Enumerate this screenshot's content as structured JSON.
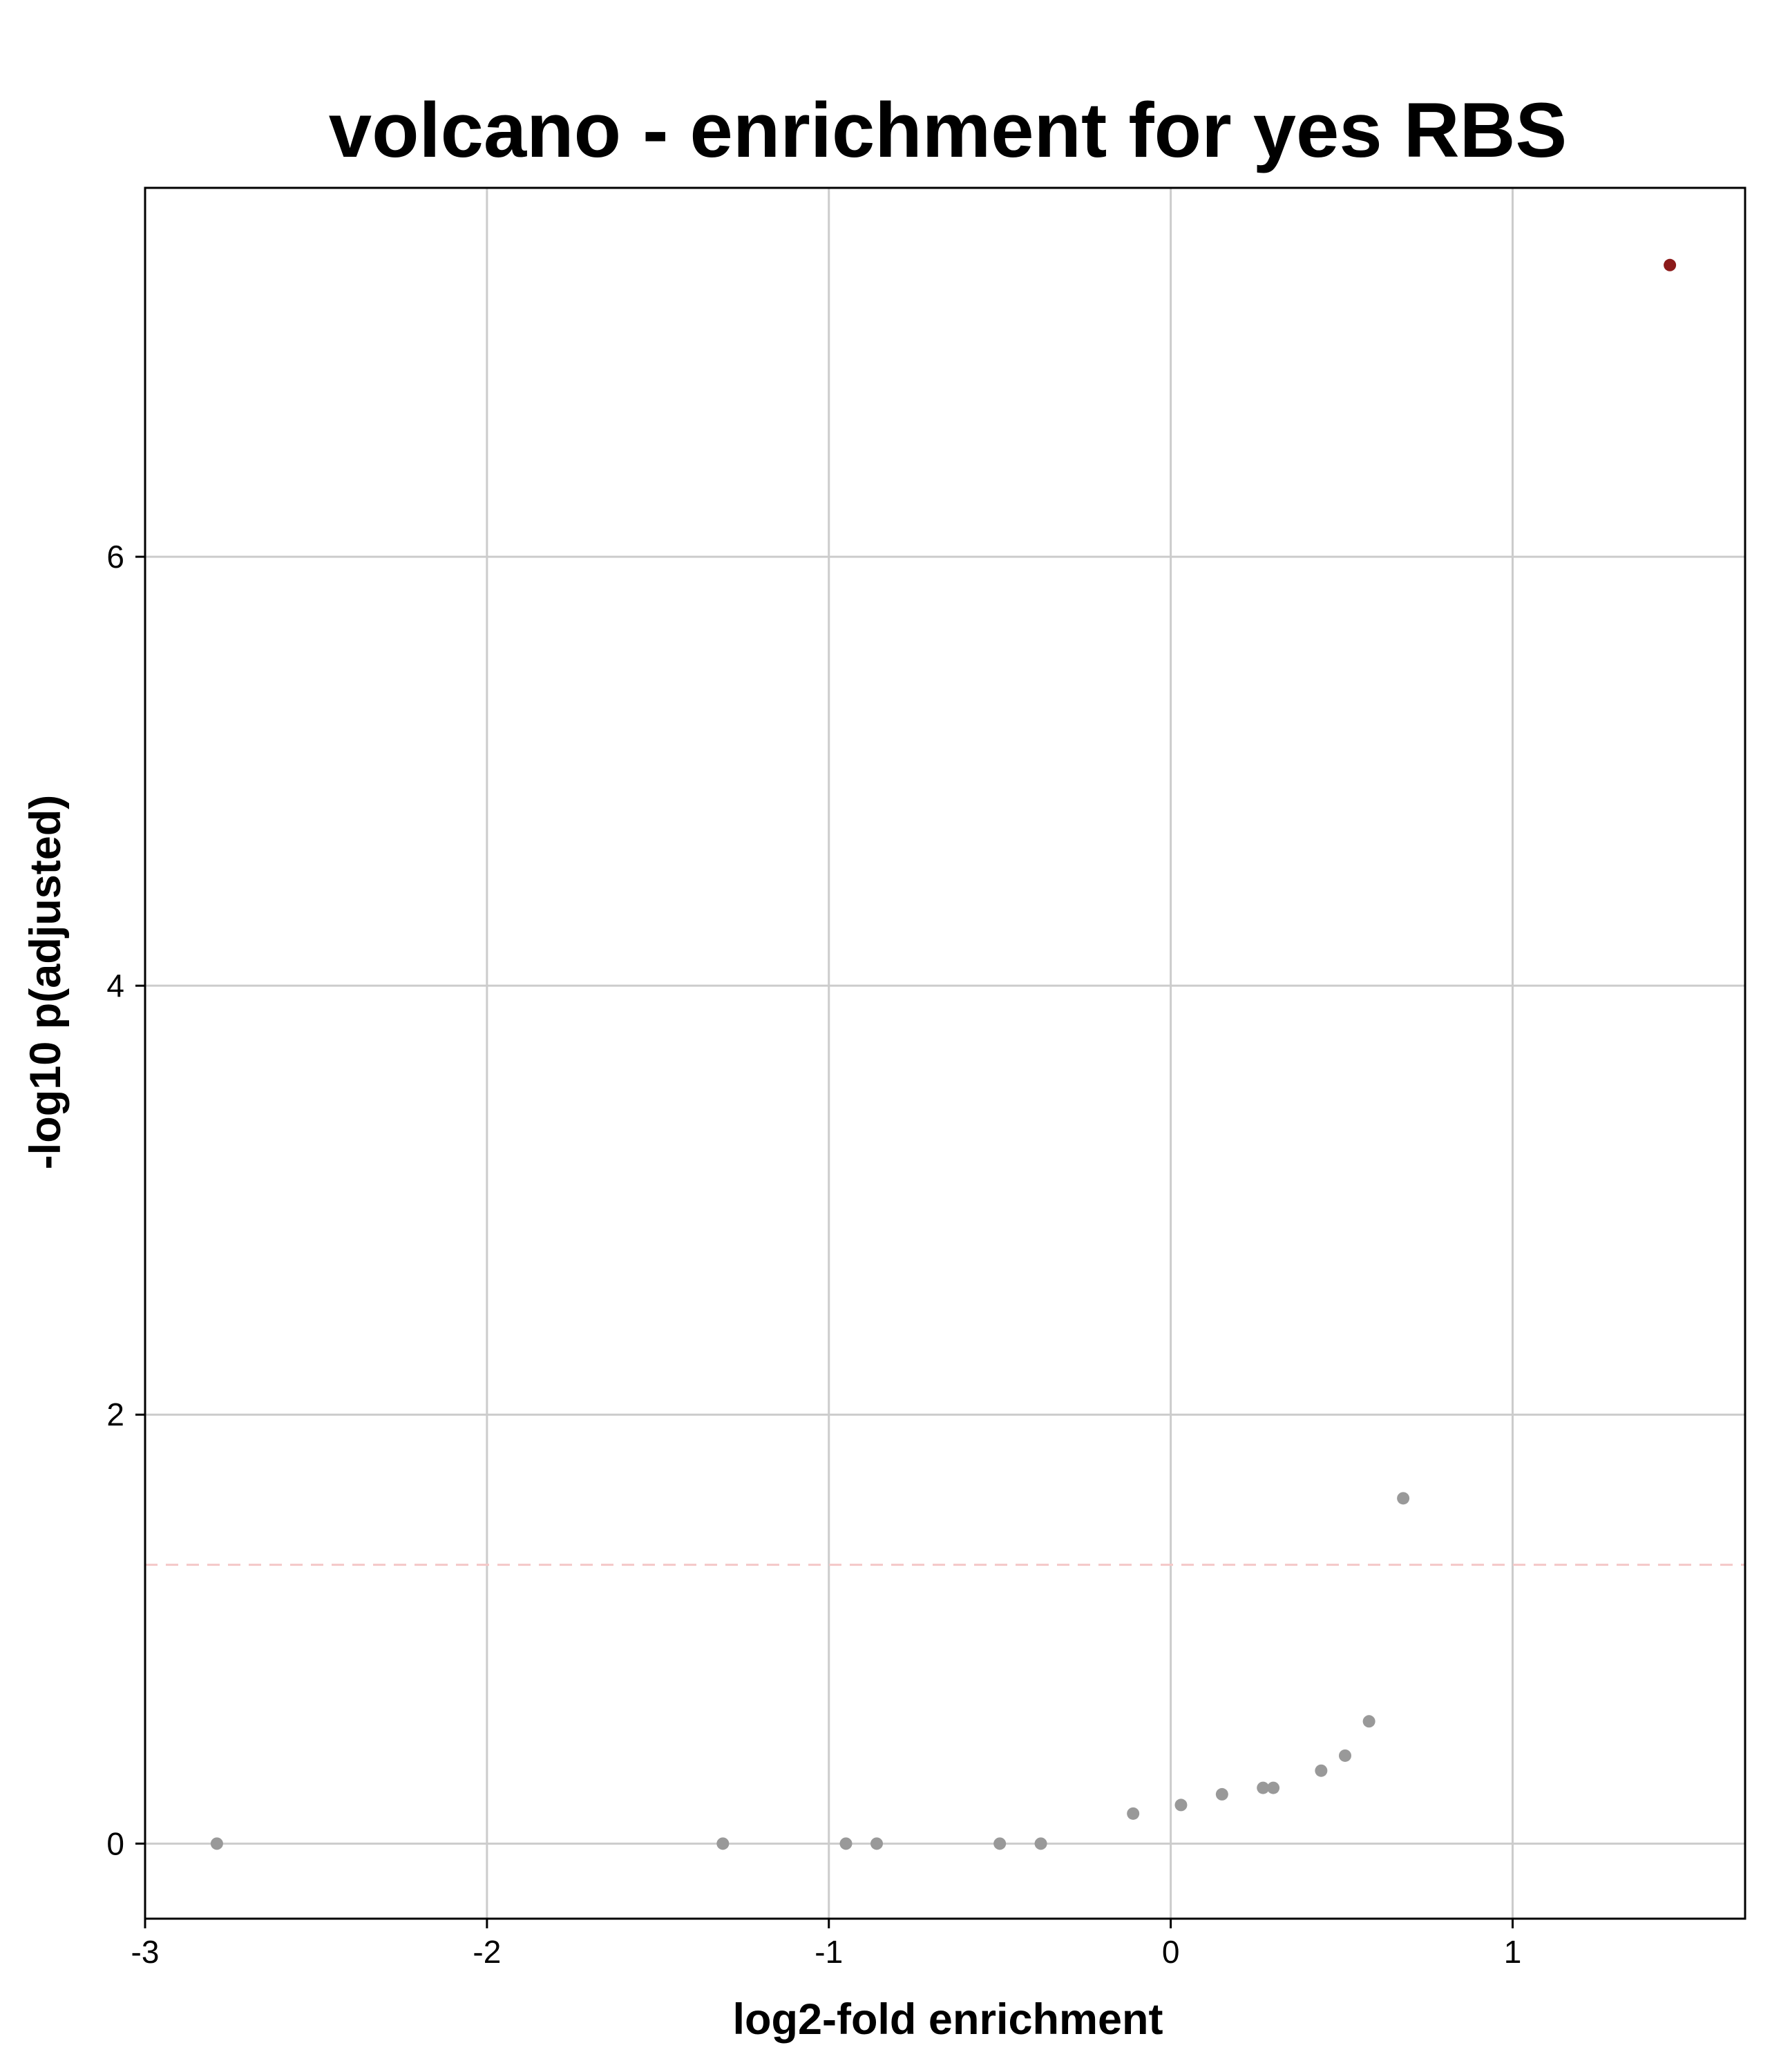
{
  "chart_data": {
    "type": "scatter",
    "title": "volcano - enrichment for yes RBS",
    "xlabel": "log2-fold enrichment",
    "ylabel": "-log10 p(adjusted)",
    "xlim": [
      -3,
      1.68
    ],
    "ylim": [
      -0.35,
      7.72
    ],
    "xticks": [
      -3,
      -2,
      -1,
      0,
      1
    ],
    "yticks": [
      0,
      2,
      4,
      6
    ],
    "xtick_labels": [
      "-3",
      "-2",
      "-1",
      "0",
      "1"
    ],
    "ytick_labels": [
      "0",
      "2",
      "4",
      "6"
    ],
    "grid": true,
    "threshold_line": {
      "y": 1.3,
      "style": "dashed",
      "color": "#f4c7c7"
    },
    "colors": {
      "significant": "#8b1a1a",
      "not_significant": "#999999",
      "grid": "#cccccc"
    },
    "points": [
      {
        "x": -2.79,
        "y": 0.0,
        "significant": false
      },
      {
        "x": -1.31,
        "y": 0.0,
        "significant": false
      },
      {
        "x": -0.95,
        "y": 0.0,
        "significant": false
      },
      {
        "x": -0.86,
        "y": 0.0,
        "significant": false
      },
      {
        "x": -0.5,
        "y": 0.0,
        "significant": false
      },
      {
        "x": -0.38,
        "y": 0.0,
        "significant": false
      },
      {
        "x": -0.11,
        "y": 0.14,
        "significant": false
      },
      {
        "x": 0.03,
        "y": 0.18,
        "significant": false
      },
      {
        "x": 0.15,
        "y": 0.23,
        "significant": false
      },
      {
        "x": 0.27,
        "y": 0.26,
        "significant": false
      },
      {
        "x": 0.3,
        "y": 0.26,
        "significant": false
      },
      {
        "x": 0.44,
        "y": 0.34,
        "significant": false
      },
      {
        "x": 0.51,
        "y": 0.41,
        "significant": false
      },
      {
        "x": 0.58,
        "y": 0.57,
        "significant": false
      },
      {
        "x": 0.68,
        "y": 1.61,
        "significant": false
      },
      {
        "x": 1.46,
        "y": 7.36,
        "significant": true
      }
    ]
  }
}
